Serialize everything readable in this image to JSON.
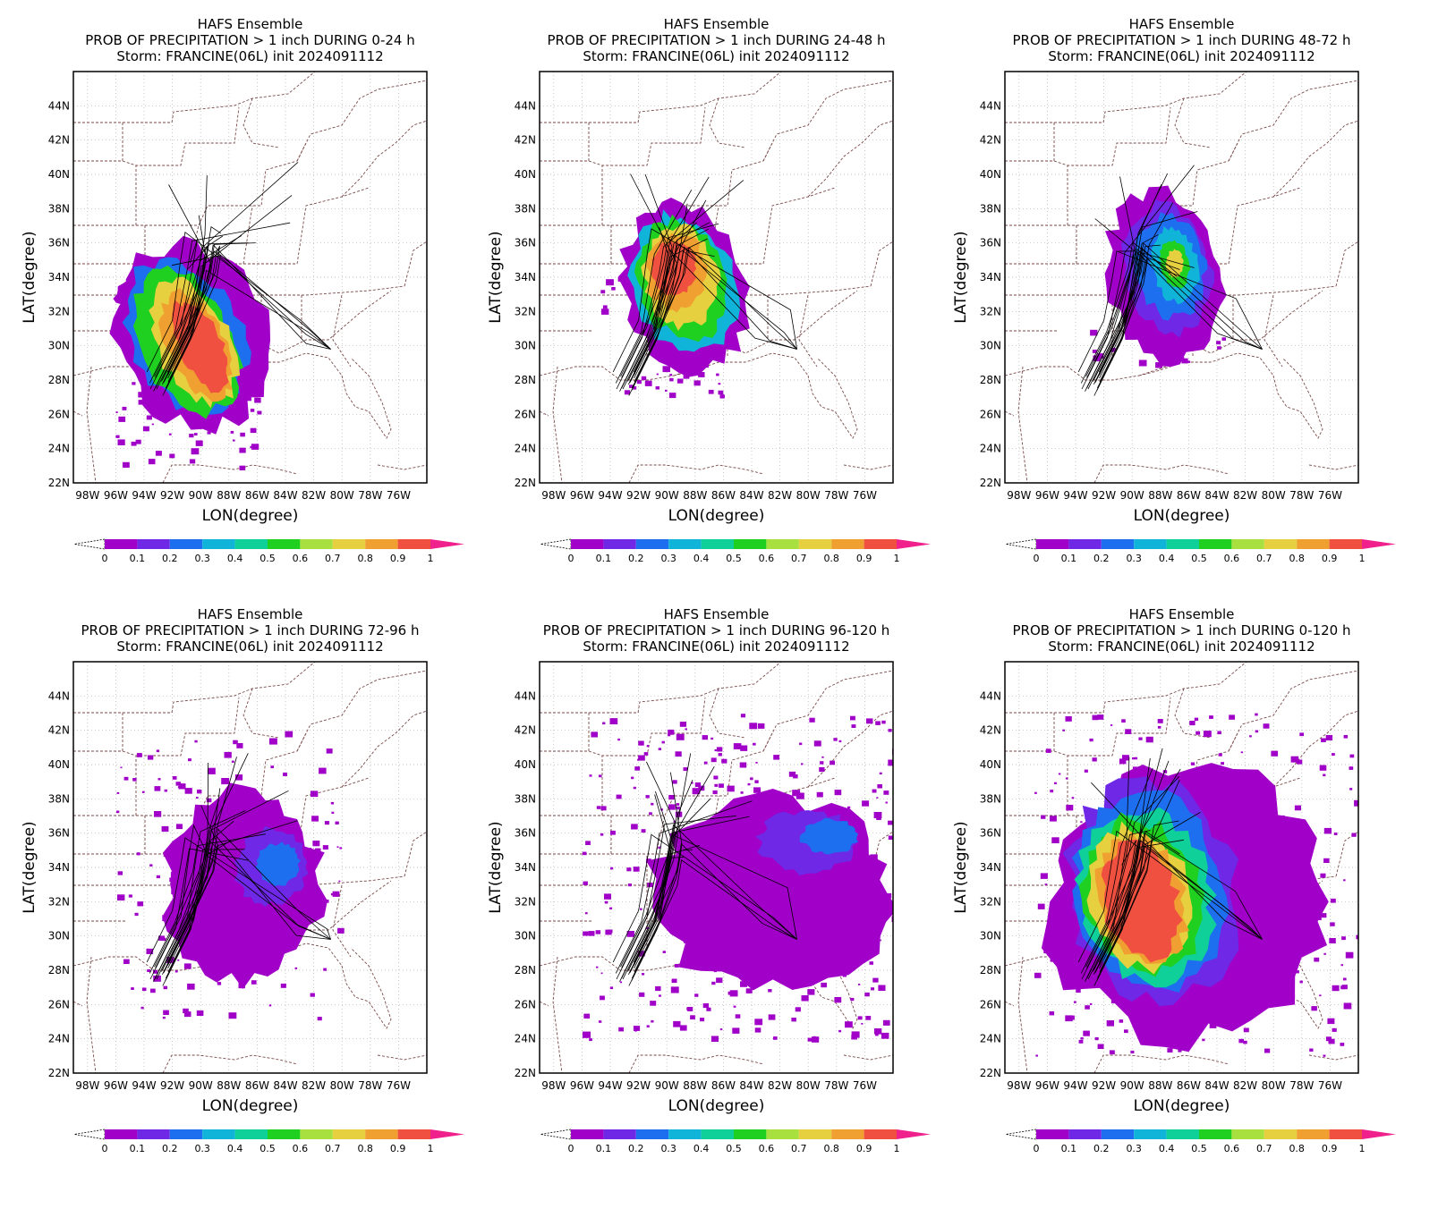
{
  "header_line1": "HAFS Ensemble",
  "storm_line": "Storm: FRANCINE(06L) init 2024091112",
  "panels": [
    {
      "title": "PROB OF PRECIPITATION > 1 inch DURING  0-24 h",
      "period": "0-24"
    },
    {
      "title": "PROB OF PRECIPITATION > 1 inch DURING 24-48 h",
      "period": "24-48"
    },
    {
      "title": "PROB OF PRECIPITATION > 1 inch DURING 48-72 h",
      "period": "48-72"
    },
    {
      "title": "PROB OF PRECIPITATION > 1 inch DURING 72-96 h",
      "period": "72-96"
    },
    {
      "title": "PROB OF PRECIPITATION > 1 inch DURING 96-120 h",
      "period": "96-120"
    },
    {
      "title": "PROB OF PRECIPITATION > 1 inch DURING 0-120 h",
      "period": "0-120"
    }
  ],
  "axes": {
    "xlabel": "LON(degree)",
    "ylabel": "LAT(degree)",
    "lon_range": [
      -99,
      -74
    ],
    "lat_range": [
      22,
      46
    ],
    "xticks": [
      "98W",
      "96W",
      "94W",
      "92W",
      "90W",
      "88W",
      "86W",
      "84W",
      "82W",
      "80W",
      "78W",
      "76W"
    ],
    "yticks": [
      "44N",
      "42N",
      "40N",
      "38N",
      "36N",
      "34N",
      "32N",
      "30N",
      "28N",
      "26N",
      "24N",
      "22N"
    ],
    "grid": "dotted"
  },
  "colorbar": {
    "labels": [
      "0",
      "0.1",
      "0.2",
      "0.3",
      "0.4",
      "0.5",
      "0.6",
      "0.7",
      "0.8",
      "0.9",
      "1"
    ],
    "colors": [
      "#a000c8",
      "#6e28e6",
      "#1e6ef0",
      "#10b4d8",
      "#10d09a",
      "#20d020",
      "#a8e040",
      "#e6d040",
      "#f0a030",
      "#f05040"
    ],
    "over_color": "#f0208c"
  },
  "colors": {
    "border": "#7a4a4a",
    "track": "#000000"
  },
  "chart_data": [
    {
      "type": "heatmap",
      "panel": "0-24 h",
      "center_lon": -90.5,
      "center_lat": 31,
      "max_probability": 1.0,
      "lat_extent": [
        23,
        35.5
      ],
      "lon_extent": [
        -95,
        -86
      ]
    },
    {
      "type": "heatmap",
      "panel": "24-48 h",
      "center_lon": -89,
      "center_lat": 34,
      "max_probability": 1.0,
      "lat_extent": [
        27,
        38
      ],
      "lon_extent": [
        -93,
        -85
      ]
    },
    {
      "type": "heatmap",
      "panel": "48-72 h",
      "center_lon": -87.5,
      "center_lat": 34.5,
      "max_probability": 0.7,
      "lat_extent": [
        28,
        39
      ],
      "lon_extent": [
        -92,
        -83
      ]
    },
    {
      "type": "heatmap",
      "panel": "72-96 h",
      "center_lon": -86,
      "center_lat": 33,
      "max_probability": 0.4,
      "lat_extent": [
        25,
        43
      ],
      "lon_extent": [
        -95,
        -81
      ]
    },
    {
      "type": "heatmap",
      "panel": "96-120 h",
      "center_lon": -82,
      "center_lat": 33,
      "max_probability": 0.4,
      "lat_extent": [
        25,
        43
      ],
      "lon_extent": [
        -93,
        -74
      ]
    },
    {
      "type": "heatmap",
      "panel": "0-120 h",
      "center_lon": -88.5,
      "center_lat": 32,
      "max_probability": 1.0,
      "lat_extent": [
        23,
        43
      ],
      "lon_extent": [
        -96,
        -74
      ]
    }
  ]
}
